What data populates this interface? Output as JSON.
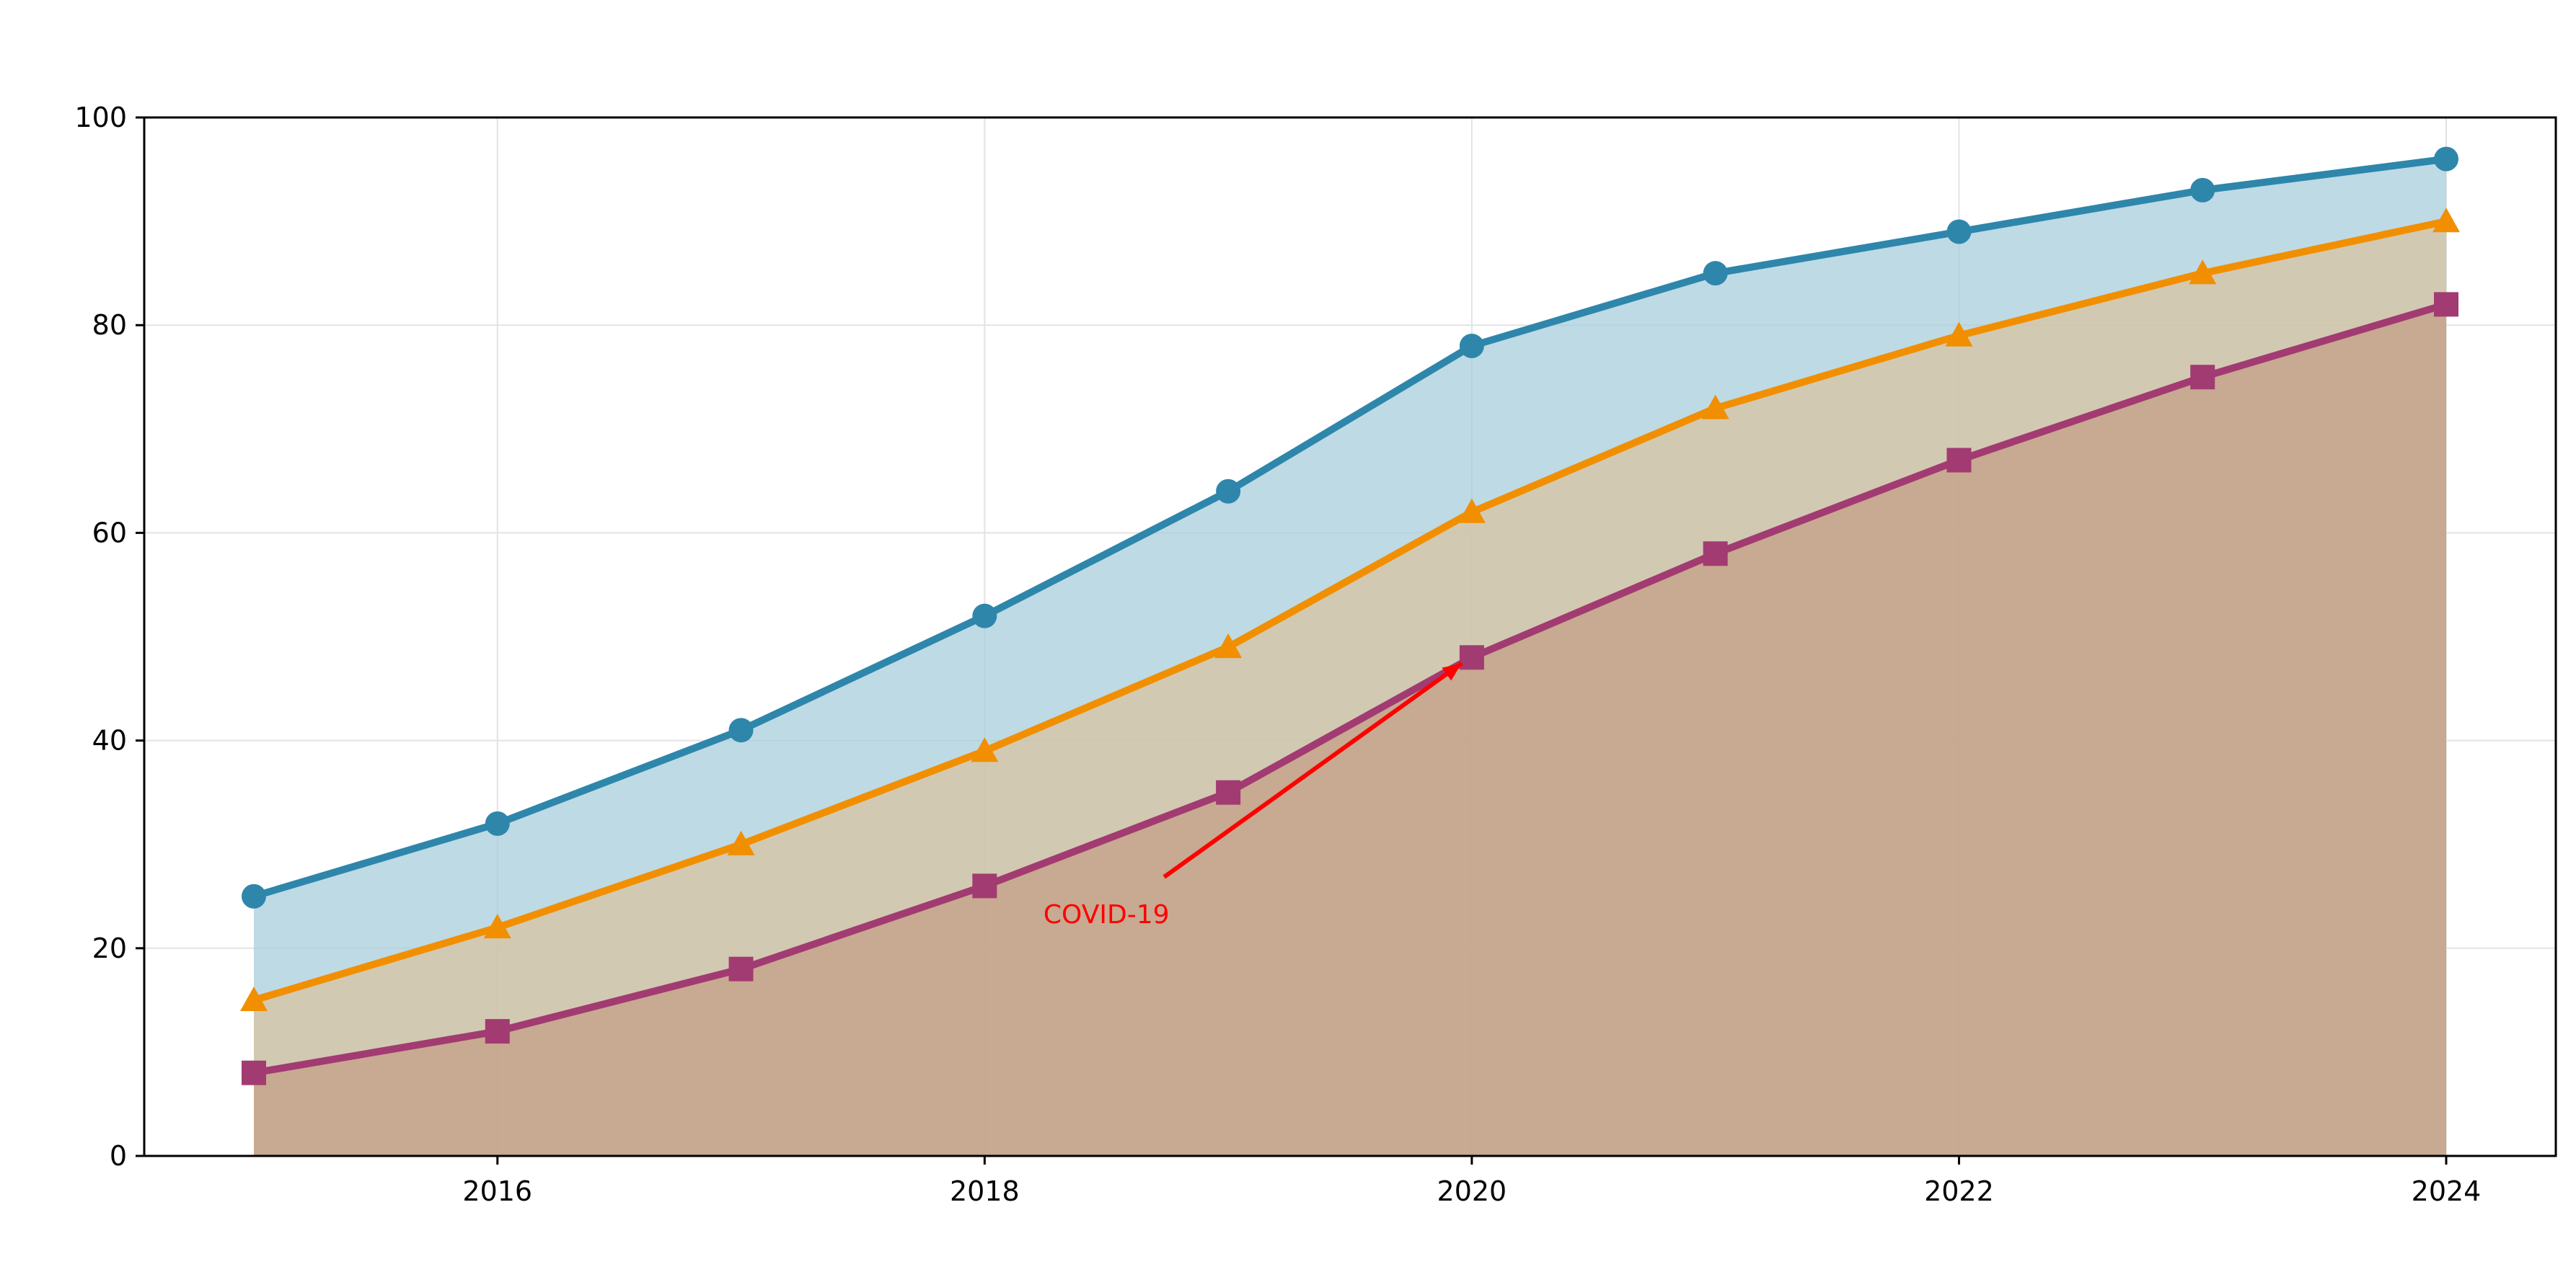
{
  "chart_data": {
    "type": "area",
    "title": "",
    "xlabel": "",
    "ylabel": "",
    "x": [
      2015,
      2016,
      2017,
      2018,
      2019,
      2020,
      2021,
      2022,
      2023,
      2024
    ],
    "xlim": [
      2014.55,
      2024.45
    ],
    "ylim": [
      0,
      100
    ],
    "x_ticks": [
      2016,
      2018,
      2020,
      2022,
      2024
    ],
    "y_ticks": [
      0,
      20,
      40,
      60,
      80,
      100
    ],
    "grid": true,
    "legend_position": "top-left",
    "series": [
      {
        "name": "",
        "marker": "circle",
        "color": "#2e86ab",
        "fill": "#a8cddc",
        "values": [
          25,
          32,
          41,
          52,
          64,
          78,
          85,
          89,
          93,
          96
        ]
      },
      {
        "name": "",
        "marker": "triangle",
        "color": "#f18f01",
        "fill": "#d8c3a0",
        "values": [
          15,
          22,
          30,
          39,
          49,
          62,
          72,
          79,
          85,
          90
        ]
      },
      {
        "name": "",
        "marker": "square",
        "color": "#a23b72",
        "fill": "#c49e85",
        "values": [
          8,
          12,
          18,
          26,
          35,
          48,
          58,
          67,
          75,
          82
        ]
      }
    ],
    "legend_order": [
      0,
      2,
      1
    ],
    "annotation": {
      "text_line1": "COVID-19",
      "text_line2": "",
      "target_x": 2020,
      "target_y": 48,
      "text_x": 2018.5,
      "text_y": 22,
      "color": "#ff0000"
    }
  }
}
